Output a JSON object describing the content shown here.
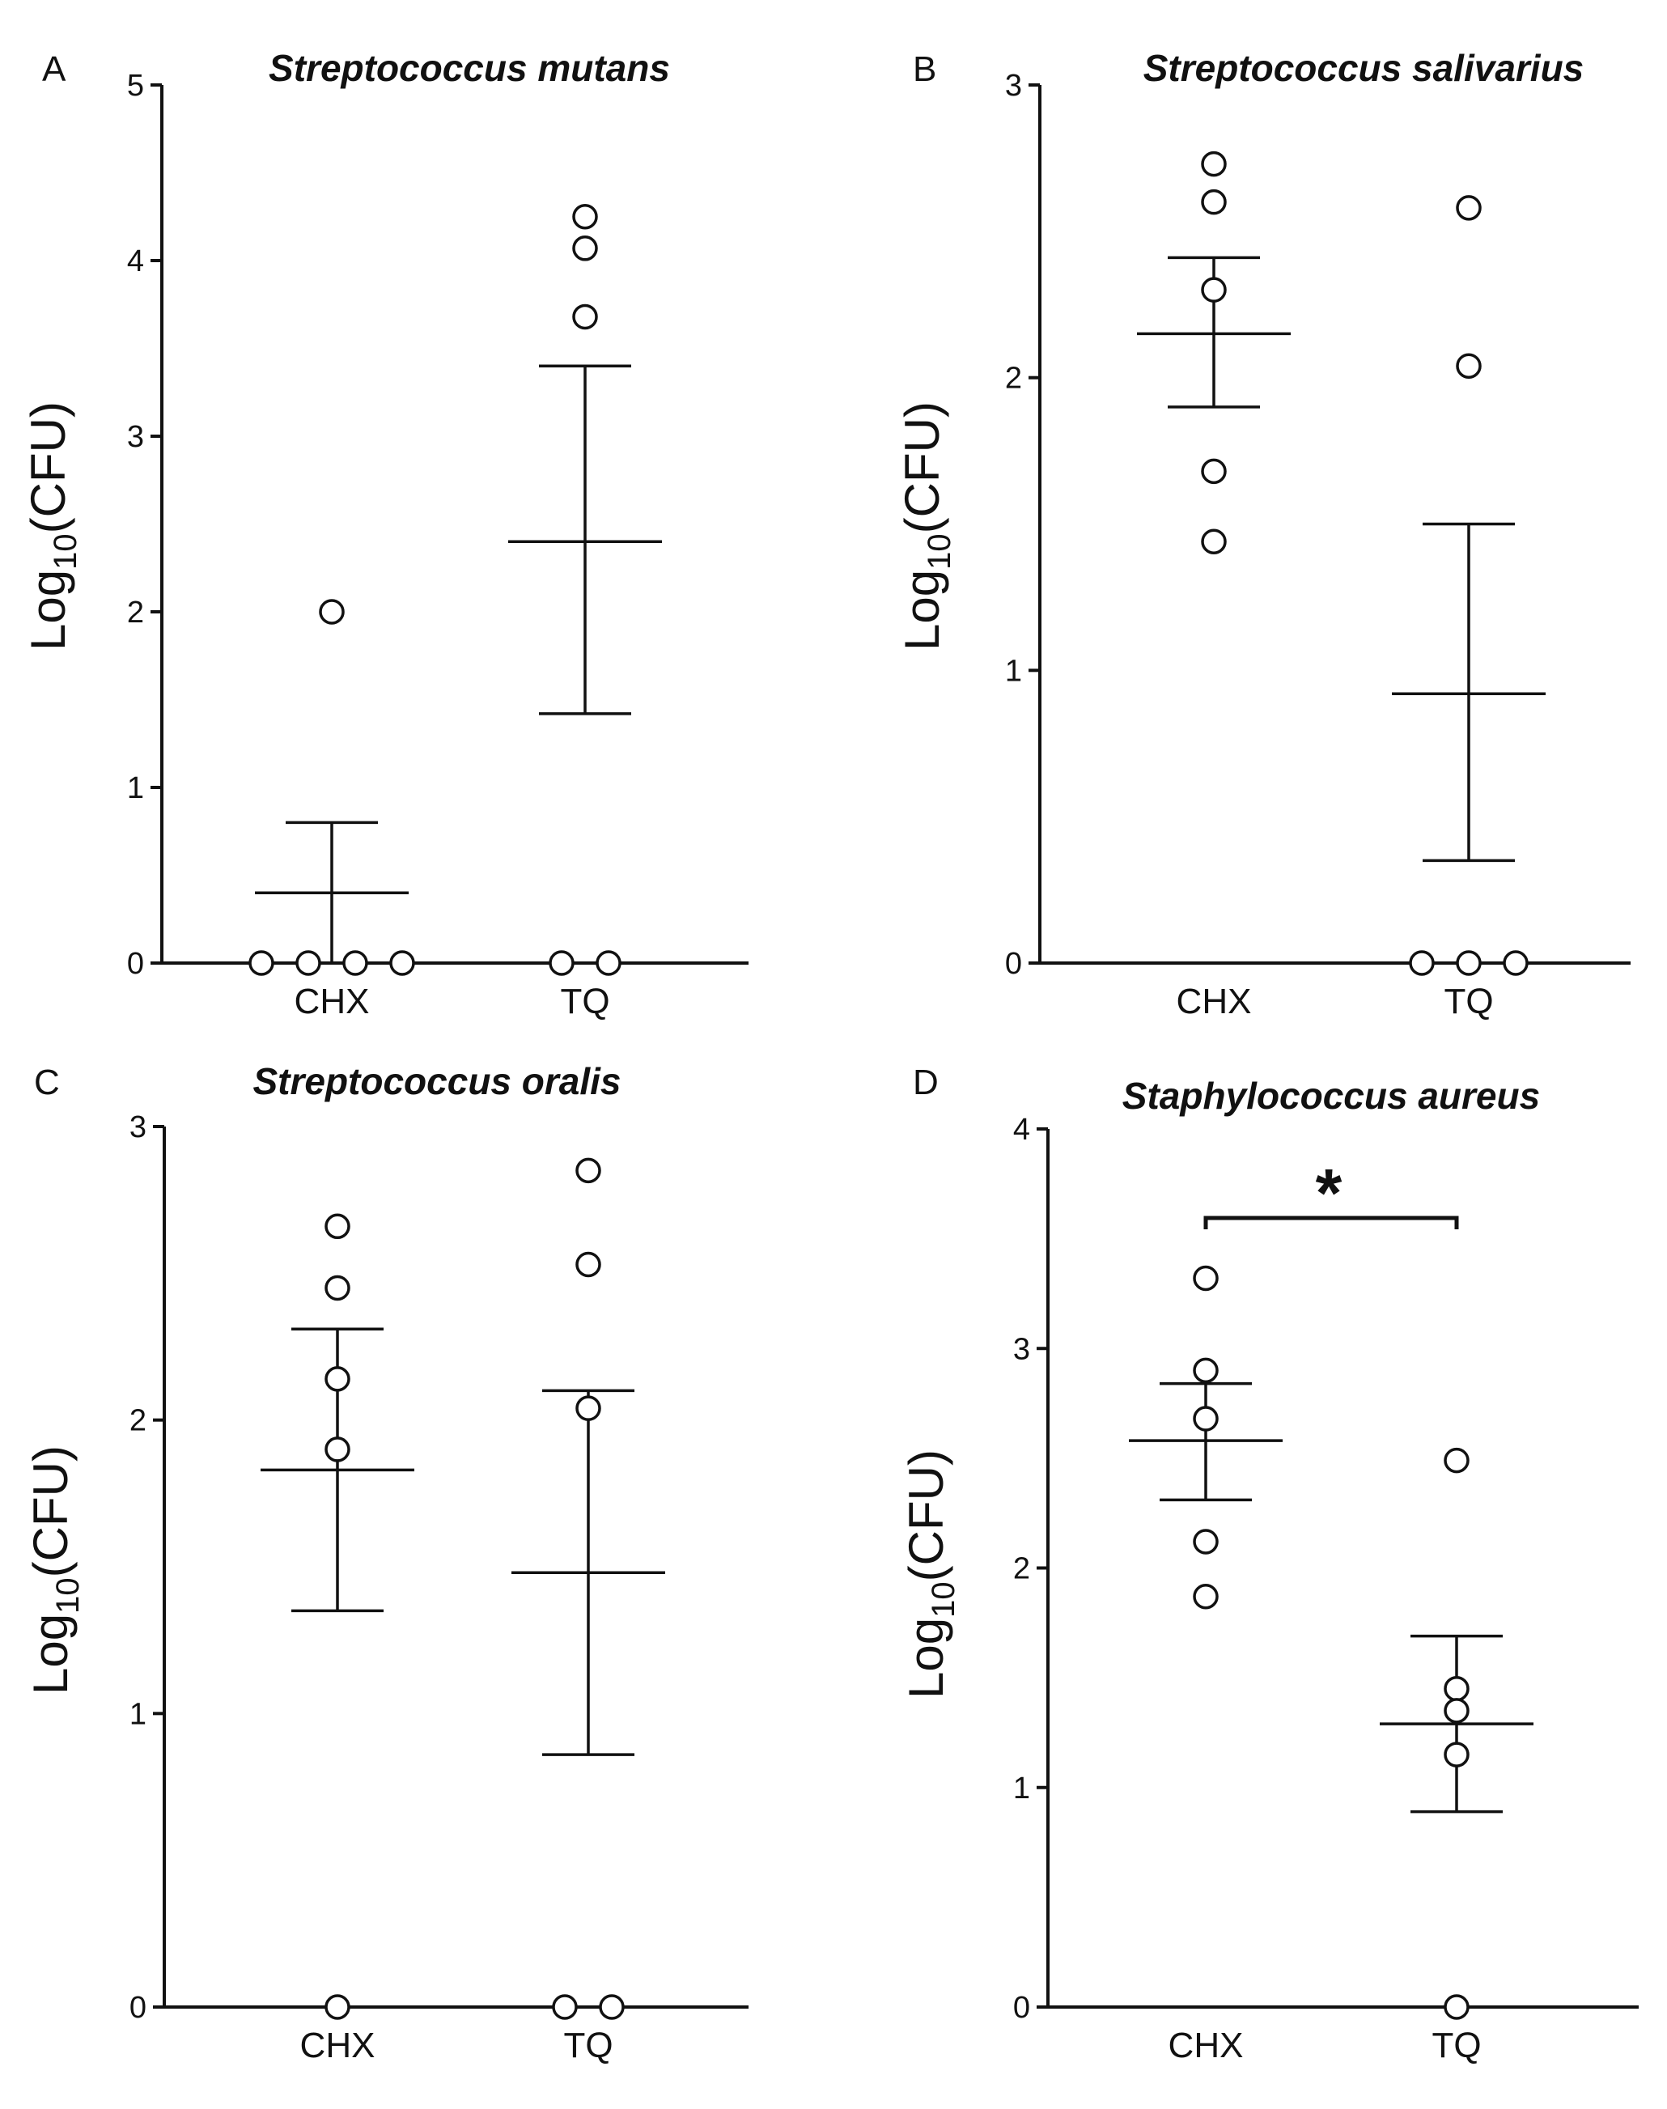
{
  "chart_data": [
    {
      "type": "scatter",
      "panel": "A",
      "title": "Streptococcus mutans",
      "ylabel_main": "Log",
      "ylabel_sub": "10",
      "ylabel_rest": "(CFU)",
      "xlabel": "",
      "categories": [
        "CHX",
        "TQ"
      ],
      "ylim": [
        0,
        5
      ],
      "yticks": [
        0,
        1,
        2,
        3,
        4,
        5
      ],
      "series": [
        {
          "name": "CHX",
          "values": [
            2.0,
            0,
            0,
            0,
            0
          ],
          "mean": 0.4,
          "sem": [
            0.0,
            0.8
          ]
        },
        {
          "name": "TQ",
          "values": [
            4.25,
            4.07,
            3.68,
            0,
            0
          ],
          "mean": 2.4,
          "sem": [
            1.42,
            3.4
          ]
        }
      ],
      "significance": null
    },
    {
      "type": "scatter",
      "panel": "B",
      "title": "Streptococcus salivarius",
      "ylabel_main": "Log",
      "ylabel_sub": "10",
      "ylabel_rest": "(CFU)",
      "xlabel": "",
      "categories": [
        "CHX",
        "TQ"
      ],
      "ylim": [
        0,
        3
      ],
      "yticks": [
        0,
        1,
        2,
        3
      ],
      "series": [
        {
          "name": "CHX",
          "values": [
            2.73,
            2.6,
            2.3,
            1.68,
            1.44
          ],
          "mean": 2.15,
          "sem": [
            1.9,
            2.41
          ]
        },
        {
          "name": "TQ",
          "values": [
            2.58,
            2.04,
            0,
            0,
            0
          ],
          "mean": 0.92,
          "sem": [
            0.35,
            1.5
          ]
        }
      ],
      "significance": null
    },
    {
      "type": "scatter",
      "panel": "C",
      "title": "Streptococcus oralis",
      "ylabel_main": "Log",
      "ylabel_sub": "10",
      "ylabel_rest": "(CFU)",
      "xlabel": "",
      "categories": [
        "CHX",
        "TQ"
      ],
      "ylim": [
        0,
        3
      ],
      "yticks": [
        0,
        1,
        2,
        3
      ],
      "series": [
        {
          "name": "CHX",
          "values": [
            2.66,
            2.45,
            2.14,
            1.9,
            0
          ],
          "mean": 1.83,
          "sem": [
            1.35,
            2.31
          ]
        },
        {
          "name": "TQ",
          "values": [
            2.85,
            2.53,
            2.04,
            0,
            0
          ],
          "mean": 1.48,
          "sem": [
            0.86,
            2.1
          ]
        }
      ],
      "significance": null
    },
    {
      "type": "scatter",
      "panel": "D",
      "title": "Staphylococcus aureus",
      "ylabel_main": "Log",
      "ylabel_sub": "10",
      "ylabel_rest": "(CFU)",
      "xlabel": "",
      "categories": [
        "CHX",
        "TQ"
      ],
      "ylim": [
        0,
        4
      ],
      "yticks": [
        0,
        1,
        2,
        3,
        4
      ],
      "series": [
        {
          "name": "CHX",
          "values": [
            3.32,
            2.9,
            2.68,
            2.12,
            1.87
          ],
          "mean": 2.58,
          "sem": [
            2.31,
            2.84
          ]
        },
        {
          "name": "TQ",
          "values": [
            2.49,
            1.45,
            1.35,
            1.15,
            0
          ],
          "mean": 1.29,
          "sem": [
            0.89,
            1.69
          ]
        }
      ],
      "significance": {
        "label": "*",
        "between": [
          "CHX",
          "TQ"
        ]
      }
    }
  ]
}
